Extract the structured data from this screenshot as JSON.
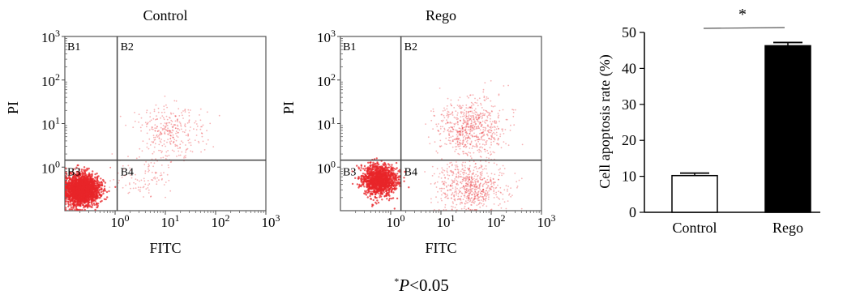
{
  "chart_data": [
    {
      "type": "scatter",
      "title": "Control",
      "xlabel": "FITC",
      "ylabel": "PI",
      "x_scale": "log",
      "y_scale": "log",
      "xlim": [
        0.1,
        1000
      ],
      "ylim": [
        0.1,
        1000
      ],
      "x_ticks": [
        {
          "base": "10",
          "exp": "0"
        },
        {
          "base": "10",
          "exp": "1"
        },
        {
          "base": "10",
          "exp": "2"
        },
        {
          "base": "10",
          "exp": "3"
        }
      ],
      "y_ticks": [
        {
          "base": "10",
          "exp": "0"
        },
        {
          "base": "10",
          "exp": "1"
        },
        {
          "base": "10",
          "exp": "2"
        },
        {
          "base": "10",
          "exp": "3"
        }
      ],
      "gate_x": 1.1,
      "gate_y": 1.45,
      "quadrants": [
        "B1",
        "B2",
        "B3",
        "B4"
      ],
      "point_color": "#e8262a",
      "populations": [
        {
          "region": "B3",
          "center_x": 0.22,
          "center_y": 0.3,
          "weight": 0.84
        },
        {
          "region": "B2",
          "center_x": 12,
          "center_y": 6,
          "weight": 0.12
        },
        {
          "region": "B4",
          "center_x": 3,
          "center_y": 0.6,
          "weight": 0.04
        }
      ]
    },
    {
      "type": "scatter",
      "title": "Rego",
      "xlabel": "FITC",
      "ylabel": "PI",
      "x_scale": "log",
      "y_scale": "log",
      "xlim": [
        0.1,
        1000
      ],
      "ylim": [
        0.1,
        1000
      ],
      "x_ticks": [
        {
          "base": "10",
          "exp": "0"
        },
        {
          "base": "10",
          "exp": "1"
        },
        {
          "base": "10",
          "exp": "2"
        },
        {
          "base": "10",
          "exp": "3"
        }
      ],
      "y_ticks": [
        {
          "base": "10",
          "exp": "0"
        },
        {
          "base": "10",
          "exp": "1"
        },
        {
          "base": "10",
          "exp": "2"
        },
        {
          "base": "10",
          "exp": "3"
        }
      ],
      "gate_x": 1.6,
      "gate_y": 1.45,
      "quadrants": [
        "B1",
        "B2",
        "B3",
        "B4"
      ],
      "point_color": "#e8262a",
      "populations": [
        {
          "region": "B3",
          "center_x": 0.6,
          "center_y": 0.5,
          "weight": 0.5
        },
        {
          "region": "B2",
          "center_x": 40,
          "center_y": 8,
          "weight": 0.26
        },
        {
          "region": "B4",
          "center_x": 40,
          "center_y": 0.35,
          "weight": 0.24
        }
      ]
    },
    {
      "type": "bar",
      "title": "",
      "categories": [
        "Control",
        "Rego"
      ],
      "values": [
        10.2,
        46.3
      ],
      "errors": [
        0.7,
        0.9
      ],
      "bar_colors": [
        "#ffffff",
        "#000000"
      ],
      "ylabel": "Cell apoptosis rate (%)",
      "ylim": [
        0,
        50
      ],
      "yticks": [
        0,
        10,
        20,
        30,
        40,
        50
      ],
      "significance": "*"
    }
  ],
  "footnote": {
    "marker": "*",
    "letter": "P",
    "rest": "<0.05"
  }
}
